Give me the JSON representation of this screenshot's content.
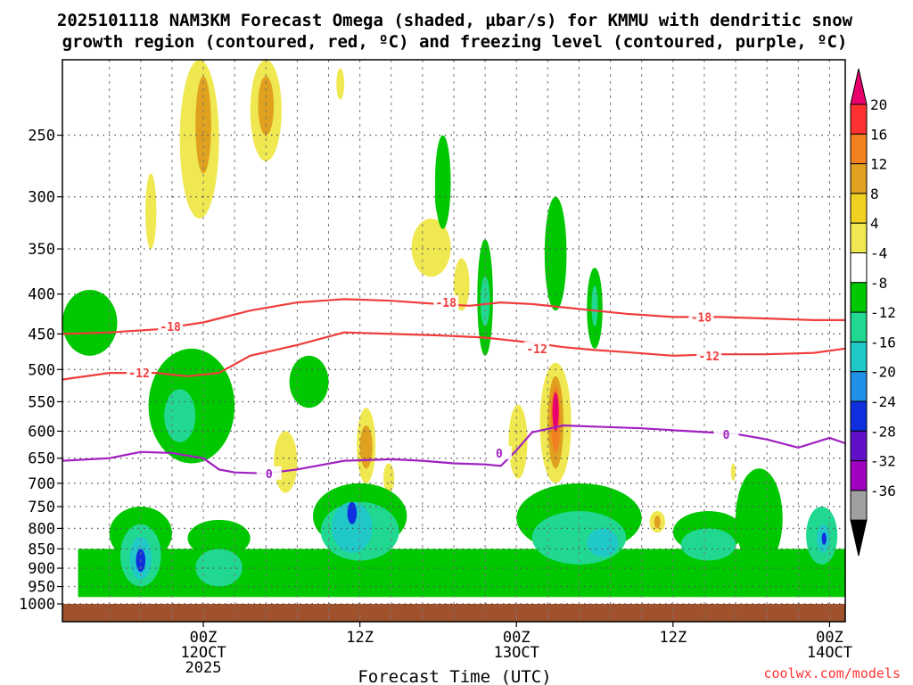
{
  "chart_data": {
    "type": "heatmap",
    "title_line1": "2025101118 NAM3KM Forecast Omega (shaded, µbar/s) for KMMU with dendritic snow",
    "title_line2": "growth region (contoured, red, ºC) and freezing level (contoured, purple, ºC)",
    "xlabel": "Forecast Time (UTC)",
    "credit": "coolwx.com/models",
    "x_unit": "forecast hour from 2025-10-11 18Z",
    "xlim": [
      -3,
      47
    ],
    "y_unit": "hPa",
    "ylim": [
      1000,
      200
    ],
    "y_scale": "log",
    "y_ticks": [
      250,
      300,
      350,
      400,
      450,
      500,
      550,
      600,
      650,
      700,
      750,
      800,
      850,
      900,
      950,
      1000
    ],
    "x_ticks": [
      {
        "hour": 6,
        "lines": [
          "00Z",
          "12OCT",
          "2025"
        ]
      },
      {
        "hour": 16,
        "lines": [
          "12Z"
        ]
      },
      {
        "hour": 26,
        "lines": [
          "00Z",
          "13OCT"
        ]
      },
      {
        "hour": 36,
        "lines": [
          "12Z"
        ]
      },
      {
        "hour": 46,
        "lines": [
          "00Z",
          "14OCT"
        ]
      }
    ],
    "grid": true,
    "colorbar": {
      "labels": [
        "20",
        "16",
        "12",
        "8",
        "4",
        "-4",
        "-8",
        "-12",
        "-16",
        "-20",
        "-24",
        "-28",
        "-32",
        "-36"
      ],
      "colors": [
        "#e8006c",
        "#ff3030",
        "#f08020",
        "#e0a020",
        "#f0d020",
        "#f0e850",
        "#ffffff",
        "#00c800",
        "#20d890",
        "#20c8c8",
        "#2090e8",
        "#1030e0",
        "#6010c8",
        "#a000c0",
        "#a0a0a0",
        "#000000"
      ]
    },
    "omega_legend_colors": {
      "4 to 8": "#f0e850",
      "8 to 12": "#e0a020",
      "12 to 16": "#f08020",
      "16 to 20": "#ff3030",
      "over 20": "#e8006c",
      "-4 to -8": "#00c800",
      "-8 to -12": "#20d890",
      "-12 to -16": "#20c8c8",
      "-16 to -20": "#2090e8",
      "-20 to -24": "#1030e0",
      "-24 to -28": "#6010c8"
    },
    "contours": {
      "isotherm_minus18": {
        "label": "-18",
        "color": "#f03c3c",
        "points": [
          [
            -3,
            450
          ],
          [
            0,
            448
          ],
          [
            3,
            444
          ],
          [
            6,
            435
          ],
          [
            9,
            420
          ],
          [
            12,
            410
          ],
          [
            15,
            406
          ],
          [
            18,
            408
          ],
          [
            21,
            412
          ],
          [
            23,
            414
          ],
          [
            25,
            410
          ],
          [
            27,
            412
          ],
          [
            29,
            416
          ],
          [
            31,
            420
          ],
          [
            33,
            424
          ],
          [
            36,
            428
          ],
          [
            39,
            428
          ],
          [
            42,
            430
          ],
          [
            45,
            432
          ],
          [
            47,
            432
          ]
        ]
      },
      "isotherm_minus12": {
        "label": "-12",
        "color": "#f03c3c",
        "points": [
          [
            -3,
            515
          ],
          [
            0,
            505
          ],
          [
            3,
            505
          ],
          [
            5,
            510
          ],
          [
            7,
            505
          ],
          [
            9,
            480
          ],
          [
            12,
            465
          ],
          [
            15,
            448
          ],
          [
            18,
            450
          ],
          [
            21,
            452
          ],
          [
            24,
            455
          ],
          [
            27,
            462
          ],
          [
            29,
            468
          ],
          [
            31,
            472
          ],
          [
            33,
            475
          ],
          [
            36,
            480
          ],
          [
            39,
            478
          ],
          [
            42,
            478
          ],
          [
            45,
            476
          ],
          [
            47,
            470
          ]
        ]
      },
      "freezing_level": {
        "label": "0",
        "color": "#a020c0",
        "points": [
          [
            -3,
            655
          ],
          [
            0,
            650
          ],
          [
            2,
            638
          ],
          [
            4,
            640
          ],
          [
            6,
            650
          ],
          [
            7,
            672
          ],
          [
            8,
            678
          ],
          [
            10,
            680
          ],
          [
            12,
            672
          ],
          [
            15,
            655
          ],
          [
            18,
            652
          ],
          [
            20,
            655
          ],
          [
            22,
            660
          ],
          [
            24,
            662
          ],
          [
            25,
            665
          ],
          [
            26,
            635
          ],
          [
            27,
            602
          ],
          [
            29,
            590
          ],
          [
            31,
            592
          ],
          [
            34,
            595
          ],
          [
            37,
            600
          ],
          [
            40,
            605
          ],
          [
            42,
            615
          ],
          [
            44,
            630
          ],
          [
            46,
            612
          ],
          [
            47,
            622
          ]
        ]
      }
    },
    "contour_labels": [
      {
        "text": "-18",
        "hour": 3.9,
        "p": 440
      },
      {
        "text": "-18",
        "hour": 21.5,
        "p": 410
      },
      {
        "text": "-18",
        "hour": 37.8,
        "p": 428
      },
      {
        "text": "-12",
        "hour": 1.9,
        "p": 505
      },
      {
        "text": "-12",
        "hour": 27.3,
        "p": 470
      },
      {
        "text": "-12",
        "hour": 38.3,
        "p": 480
      },
      {
        "text": "0",
        "hour": 10.2,
        "p": 680
      },
      {
        "text": "0",
        "hour": 24.9,
        "p": 640
      },
      {
        "text": "0",
        "hour": 39.4,
        "p": 606
      }
    ],
    "omega_regions": [
      {
        "v": 4,
        "h": [
          4.5,
          7.0
        ],
        "p": [
          200,
          320
        ],
        "shape": "blob"
      },
      {
        "v": 8,
        "h": [
          5.5,
          6.5
        ],
        "p": [
          210,
          280
        ],
        "shape": "blob"
      },
      {
        "v": 4,
        "h": [
          9.0,
          11.0
        ],
        "p": [
          200,
          270
        ],
        "shape": "blob"
      },
      {
        "v": 8,
        "h": [
          9.5,
          10.5
        ],
        "p": [
          210,
          250
        ],
        "shape": "blob"
      },
      {
        "v": 4,
        "h": [
          2.3,
          3.0
        ],
        "p": [
          280,
          350
        ],
        "shape": "blob"
      },
      {
        "v": 4,
        "h": [
          14.5,
          15.0
        ],
        "p": [
          205,
          225
        ],
        "shape": "blob"
      },
      {
        "v": -4,
        "h": [
          -3.0,
          0.5
        ],
        "p": [
          395,
          480
        ],
        "shape": "blob"
      },
      {
        "v": -4,
        "h": [
          2.5,
          8.0
        ],
        "p": [
          470,
          660
        ],
        "shape": "blob"
      },
      {
        "v": -8,
        "h": [
          3.5,
          5.5
        ],
        "p": [
          530,
          620
        ],
        "shape": "blob"
      },
      {
        "v": -4,
        "h": [
          11.5,
          14.0
        ],
        "p": [
          480,
          560
        ],
        "shape": "blob"
      },
      {
        "v": 4,
        "h": [
          10.5,
          12.0
        ],
        "p": [
          600,
          720
        ],
        "shape": "blob"
      },
      {
        "v": 4,
        "h": [
          15.8,
          17.0
        ],
        "p": [
          560,
          700
        ],
        "shape": "blob"
      },
      {
        "v": 8,
        "h": [
          16.0,
          16.8
        ],
        "p": [
          590,
          670
        ],
        "shape": "blob"
      },
      {
        "v": 4,
        "h": [
          17.5,
          18.2
        ],
        "p": [
          660,
          720
        ],
        "shape": "blob"
      },
      {
        "v": -4,
        "h": [
          20.8,
          21.5
        ],
        "p": [
          280,
          320
        ],
        "shape": "blob"
      },
      {
        "v": 4,
        "h": [
          19.3,
          21.8
        ],
        "p": [
          320,
          380
        ],
        "shape": "blob"
      },
      {
        "v": -4,
        "h": [
          20.8,
          21.8
        ],
        "p": [
          250,
          330
        ],
        "shape": "blob"
      },
      {
        "v": 4,
        "h": [
          22.0,
          23.0
        ],
        "p": [
          360,
          420
        ],
        "shape": "blob"
      },
      {
        "v": -4,
        "h": [
          23.5,
          24.5
        ],
        "p": [
          340,
          480
        ],
        "shape": "blob"
      },
      {
        "v": -8,
        "h": [
          23.7,
          24.3
        ],
        "p": [
          380,
          440
        ],
        "shape": "blob"
      },
      {
        "v": -4,
        "h": [
          27.8,
          29.2
        ],
        "p": [
          300,
          420
        ],
        "shape": "blob"
      },
      {
        "v": 4,
        "h": [
          25.5,
          26.7
        ],
        "p": [
          555,
          690
        ],
        "shape": "blob"
      },
      {
        "v": 4,
        "h": [
          27.5,
          29.5
        ],
        "p": [
          490,
          700
        ],
        "shape": "blob"
      },
      {
        "v": 8,
        "h": [
          28.0,
          29.0
        ],
        "p": [
          510,
          670
        ],
        "shape": "blob"
      },
      {
        "v": 12,
        "h": [
          28.2,
          28.8
        ],
        "p": [
          525,
          640
        ],
        "shape": "blob"
      },
      {
        "v": 20,
        "h": [
          28.3,
          28.7
        ],
        "p": [
          535,
          600
        ],
        "shape": "blob"
      },
      {
        "v": -4,
        "h": [
          30.5,
          31.5
        ],
        "p": [
          370,
          470
        ],
        "shape": "blob"
      },
      {
        "v": -8,
        "h": [
          30.8,
          31.2
        ],
        "p": [
          390,
          440
        ],
        "shape": "blob"
      },
      {
        "v": -4,
        "h": [
          -2.0,
          49.0
        ],
        "p": [
          850,
          980
        ],
        "shape": "band"
      },
      {
        "v": -4,
        "h": [
          0.0,
          4.0
        ],
        "p": [
          750,
          880
        ],
        "shape": "blob"
      },
      {
        "v": -8,
        "h": [
          0.7,
          3.3
        ],
        "p": [
          790,
          950
        ],
        "shape": "blob"
      },
      {
        "v": -12,
        "h": [
          1.3,
          2.7
        ],
        "p": [
          820,
          930
        ],
        "shape": "blob"
      },
      {
        "v": -20,
        "h": [
          1.7,
          2.3
        ],
        "p": [
          850,
          910
        ],
        "shape": "blob"
      },
      {
        "v": -4,
        "h": [
          5.0,
          9.0
        ],
        "p": [
          780,
          870
        ],
        "shape": "blob"
      },
      {
        "v": -8,
        "h": [
          5.5,
          8.5
        ],
        "p": [
          850,
          950
        ],
        "shape": "blob"
      },
      {
        "v": -4,
        "h": [
          13.0,
          19.0
        ],
        "p": [
          700,
          850
        ],
        "shape": "blob"
      },
      {
        "v": -8,
        "h": [
          13.5,
          18.5
        ],
        "p": [
          740,
          880
        ],
        "shape": "blob"
      },
      {
        "v": -12,
        "h": [
          14.2,
          16.8
        ],
        "p": [
          740,
          860
        ],
        "shape": "blob"
      },
      {
        "v": -20,
        "h": [
          15.2,
          15.8
        ],
        "p": [
          740,
          790
        ],
        "shape": "blob"
      },
      {
        "v": -4,
        "h": [
          26.0,
          34.0
        ],
        "p": [
          700,
          860
        ],
        "shape": "blob"
      },
      {
        "v": -8,
        "h": [
          27.0,
          33.0
        ],
        "p": [
          760,
          890
        ],
        "shape": "blob"
      },
      {
        "v": -12,
        "h": [
          30.5,
          32.5
        ],
        "p": [
          800,
          870
        ],
        "shape": "blob"
      },
      {
        "v": -4,
        "h": [
          36.0,
          40.5
        ],
        "p": [
          760,
          860
        ],
        "shape": "blob"
      },
      {
        "v": -8,
        "h": [
          36.5,
          40.0
        ],
        "p": [
          800,
          880
        ],
        "shape": "blob"
      },
      {
        "v": -4,
        "h": [
          40.0,
          43.0
        ],
        "p": [
          670,
          900
        ],
        "shape": "blob"
      },
      {
        "v": -8,
        "h": [
          44.5,
          46.5
        ],
        "p": [
          750,
          890
        ],
        "shape": "blob"
      },
      {
        "v": -12,
        "h": [
          45.2,
          46.0
        ],
        "p": [
          790,
          860
        ],
        "shape": "blob"
      },
      {
        "v": -20,
        "h": [
          45.5,
          45.8
        ],
        "p": [
          810,
          840
        ],
        "shape": "blob"
      },
      {
        "v": 4,
        "h": [
          34.5,
          35.5
        ],
        "p": [
          760,
          810
        ],
        "shape": "blob"
      },
      {
        "v": 8,
        "h": [
          34.8,
          35.2
        ],
        "p": [
          770,
          800
        ],
        "shape": "blob"
      },
      {
        "v": 4,
        "h": [
          39.7,
          40.0
        ],
        "p": [
          660,
          695
        ],
        "shape": "blob"
      }
    ],
    "ground_color": "#a0522d"
  }
}
